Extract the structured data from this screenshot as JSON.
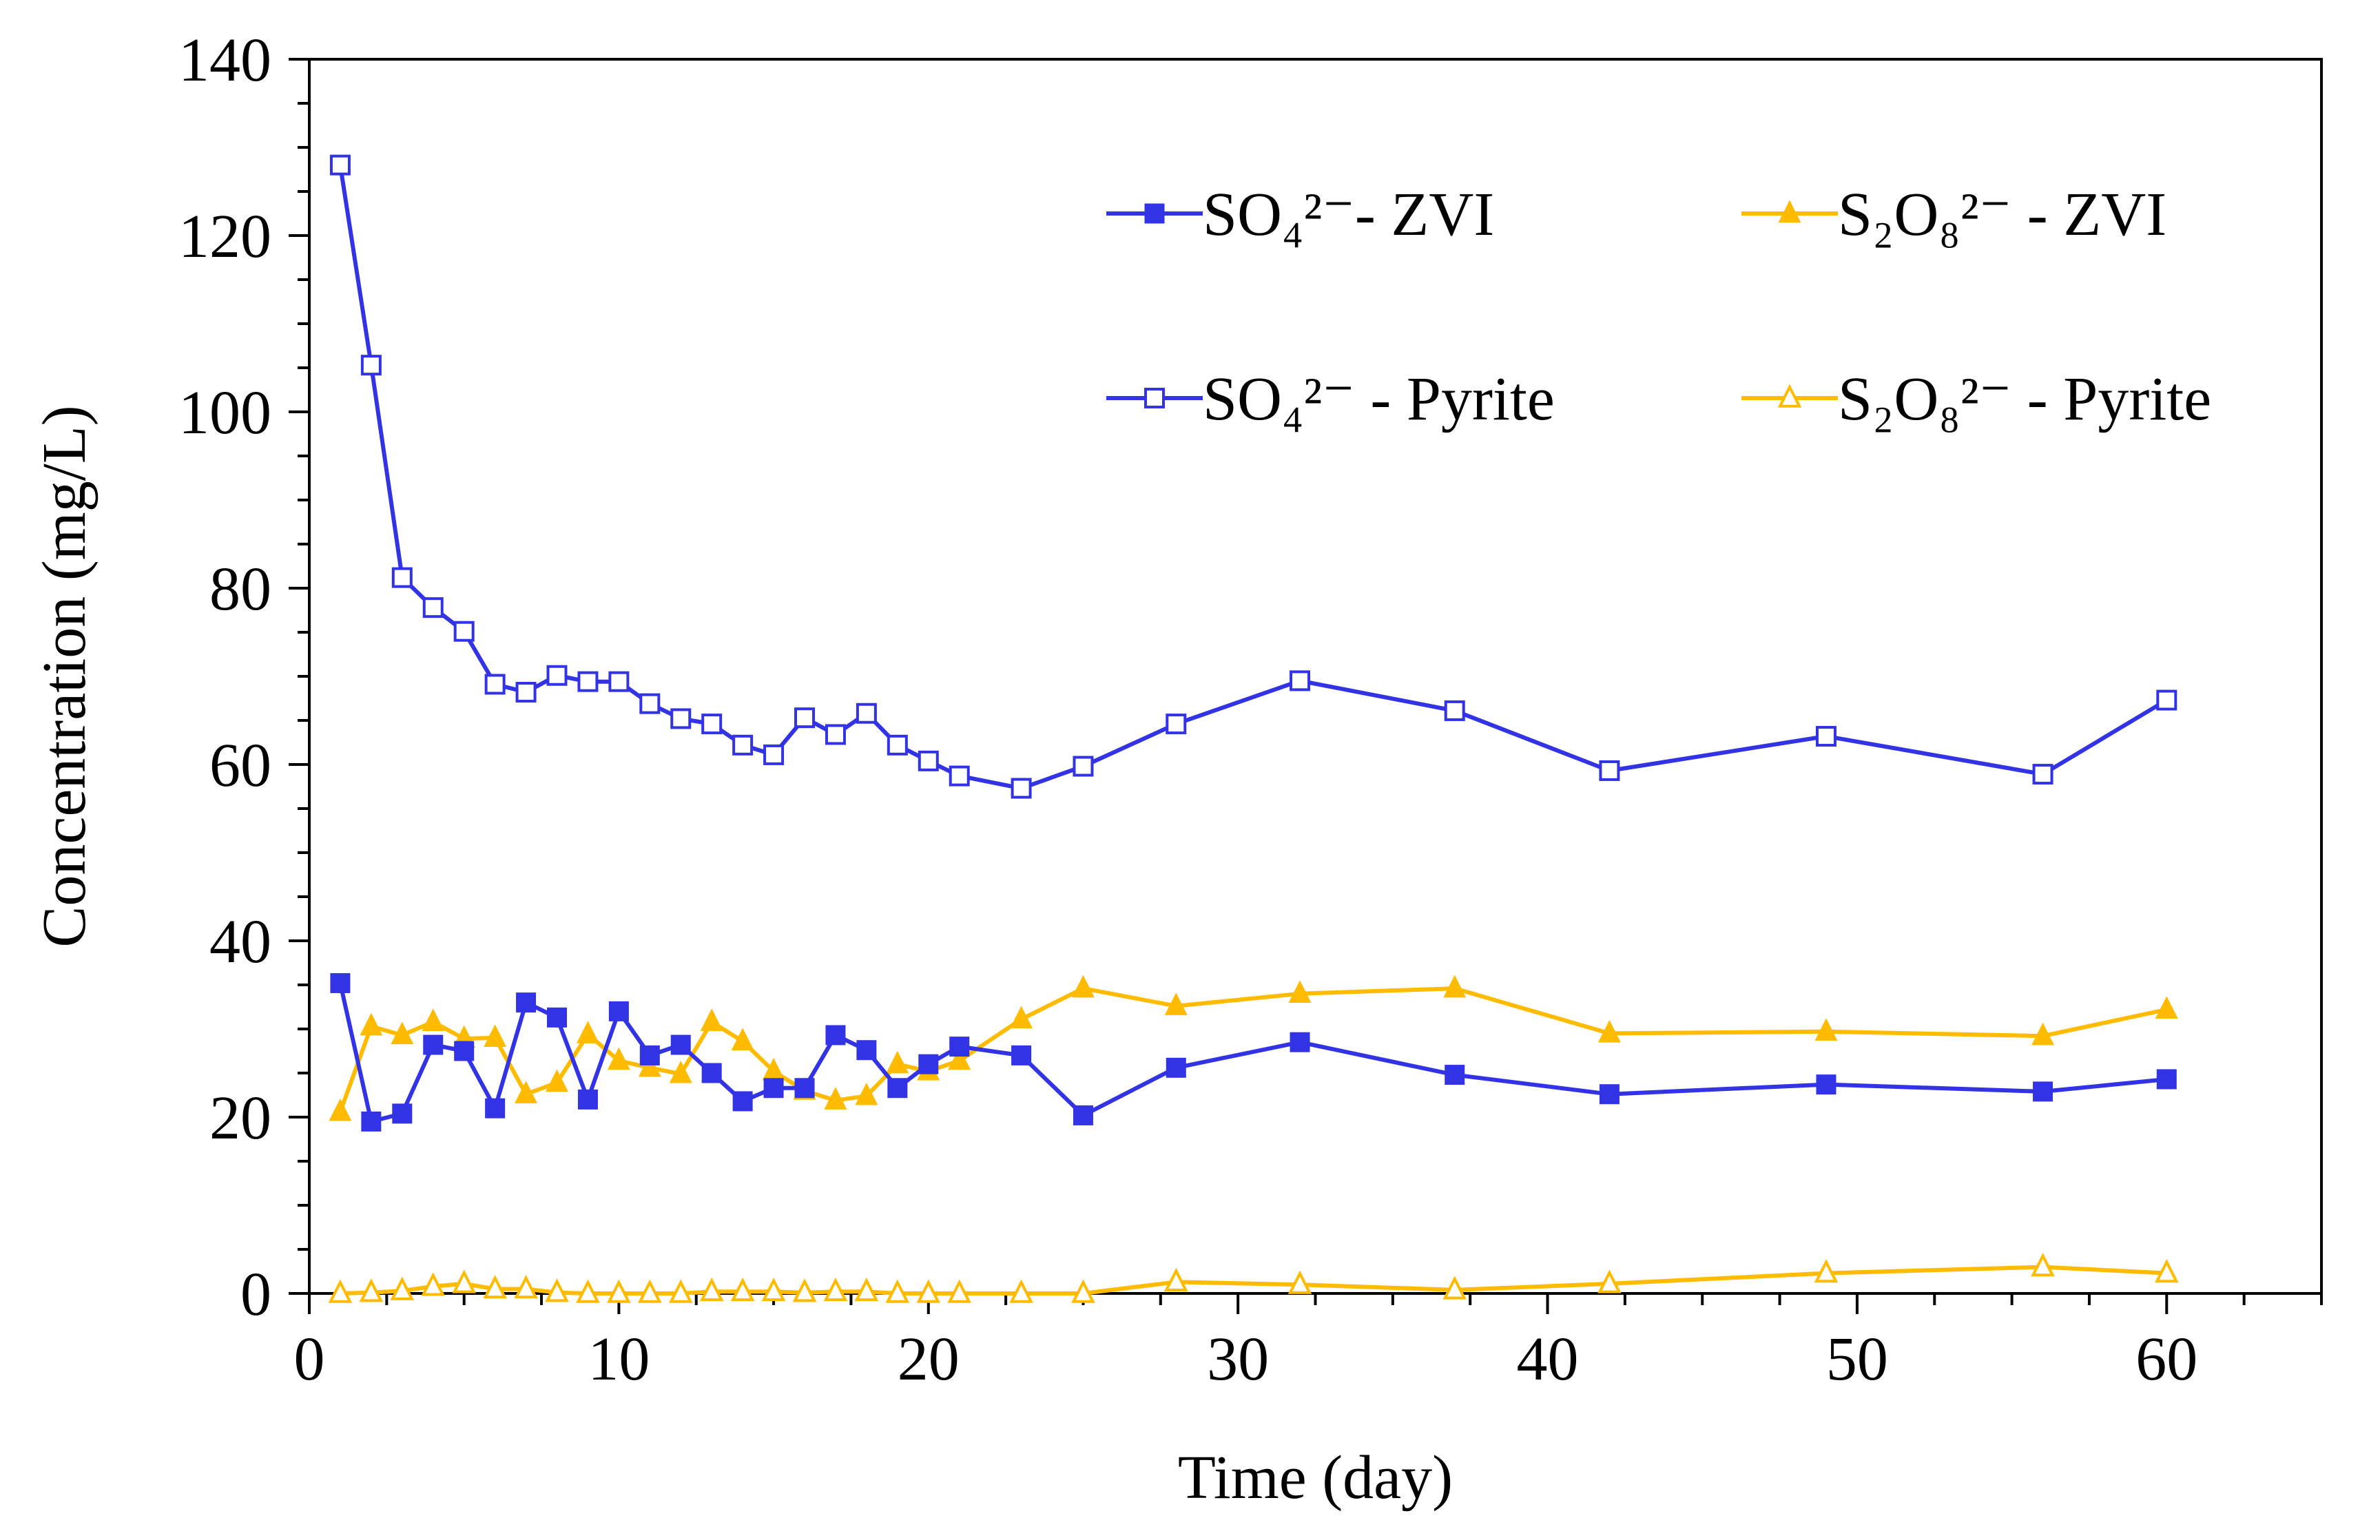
{
  "chart_data": {
    "type": "line",
    "xlabel": "Time (day)",
    "ylabel": "Concentration (mg/L)",
    "xlim": [
      0,
      65
    ],
    "ylim": [
      0,
      140
    ],
    "xticks": [
      0,
      10,
      20,
      30,
      40,
      50,
      60
    ],
    "yticks": [
      0,
      20,
      40,
      60,
      80,
      100,
      120,
      140
    ],
    "x_tick_labels": [
      "0",
      "10",
      "20",
      "30",
      "40",
      "50",
      "60"
    ],
    "y_tick_labels": [
      "0",
      "20",
      "40",
      "60",
      "80",
      "100",
      "120",
      "140"
    ],
    "grid": false,
    "legend_position": "top-right",
    "colors": {
      "blue": "#3333e6",
      "orange": "#ffbb00"
    },
    "series": [
      {
        "name": "SO₄²⁻- ZVI",
        "color": "#3333e6",
        "marker": "square-filled",
        "x": [
          1,
          2,
          3,
          4,
          5,
          6,
          7,
          8,
          9,
          10,
          11,
          12,
          13,
          14,
          15,
          16,
          17,
          18,
          19,
          20,
          21,
          23,
          25,
          28,
          32,
          37,
          42,
          49,
          56,
          60
        ],
        "y": [
          35.2,
          19.5,
          20.4,
          28.2,
          27.5,
          21.0,
          33.0,
          31.3,
          22.0,
          32.0,
          27.0,
          28.2,
          25.0,
          21.8,
          23.3,
          23.3,
          29.3,
          27.6,
          23.3,
          26.0,
          28.0,
          27.0,
          20.2,
          25.6,
          28.5,
          24.8,
          22.6,
          23.7,
          22.9,
          24.3
        ]
      },
      {
        "name": "S₂O₈²⁻ - ZVI",
        "color": "#ffbb00",
        "marker": "triangle-filled",
        "x": [
          1,
          2,
          3,
          4,
          5,
          6,
          7,
          8,
          9,
          10,
          11,
          12,
          13,
          14,
          15,
          16,
          17,
          18,
          19,
          20,
          21,
          23,
          25,
          28,
          32,
          37,
          42,
          49,
          56,
          60
        ],
        "y": [
          20.6,
          30.3,
          29.3,
          30.8,
          28.9,
          29.0,
          22.6,
          23.9,
          29.4,
          26.4,
          25.6,
          24.9,
          30.8,
          28.6,
          25.2,
          23.0,
          21.9,
          22.4,
          26.0,
          25.2,
          26.4,
          31.1,
          34.6,
          32.6,
          34.0,
          34.6,
          29.5,
          29.7,
          29.2,
          32.2
        ]
      },
      {
        "name": "SO₄²⁻ - Pyrite",
        "color": "#3333e6",
        "marker": "square-open",
        "x": [
          1,
          2,
          3,
          4,
          5,
          6,
          7,
          8,
          9,
          10,
          11,
          12,
          13,
          14,
          15,
          16,
          17,
          18,
          19,
          20,
          21,
          23,
          25,
          28,
          32,
          37,
          42,
          49,
          56,
          60
        ],
        "y": [
          128.0,
          105.3,
          81.2,
          77.8,
          75.1,
          69.1,
          68.2,
          70.1,
          69.4,
          69.4,
          66.9,
          65.2,
          64.6,
          62.2,
          61.1,
          65.3,
          63.4,
          65.8,
          62.2,
          60.4,
          58.7,
          57.3,
          59.8,
          64.6,
          69.5,
          66.1,
          59.3,
          63.2,
          58.9,
          67.3
        ]
      },
      {
        "name": "S₂O₈²⁻ - Pyrite",
        "color": "#ffbb00",
        "marker": "triangle-open",
        "x": [
          1,
          2,
          3,
          4,
          5,
          6,
          7,
          8,
          9,
          10,
          11,
          12,
          13,
          14,
          15,
          16,
          17,
          18,
          19,
          20,
          21,
          23,
          25,
          28,
          32,
          37,
          42,
          49,
          56,
          60
        ],
        "y": [
          0.0,
          0.1,
          0.3,
          0.8,
          1.1,
          0.5,
          0.5,
          0.1,
          0.0,
          0.0,
          0.0,
          0.0,
          0.2,
          0.2,
          0.2,
          0.1,
          0.2,
          0.2,
          0.0,
          0.0,
          0.0,
          0.0,
          0.0,
          1.3,
          1.0,
          0.4,
          1.1,
          2.3,
          3.0,
          2.3
        ]
      }
    ]
  }
}
